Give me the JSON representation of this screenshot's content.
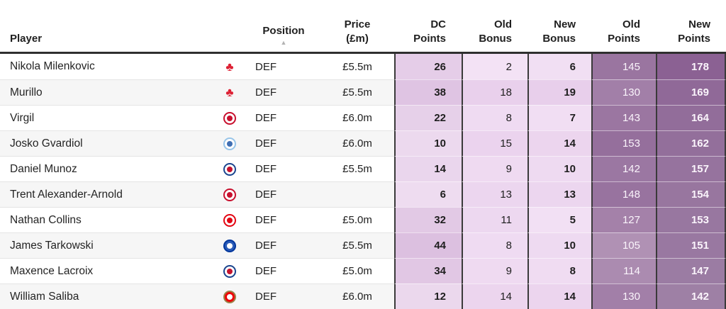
{
  "table": {
    "columns": {
      "player": {
        "label": "Player"
      },
      "position": {
        "label": "Position",
        "sort_indicator": "▲"
      },
      "price": {
        "line1": "Price",
        "line2": "(£m)"
      },
      "dc_points": {
        "line1": "DC",
        "line2": "Points"
      },
      "old_bonus": {
        "line1": "Old",
        "line2": "Bonus"
      },
      "new_bonus": {
        "line1": "New",
        "line2": "Bonus"
      },
      "old_points": {
        "line1": "Old",
        "line2": "Points"
      },
      "new_points": {
        "line1": "New",
        "line2": "Points"
      }
    },
    "rows": [
      {
        "player": "Nikola Milenkovic",
        "club": "nottingham-forest",
        "position": "DEF",
        "price": "£5.5m",
        "dc_points": 26,
        "old_bonus": 2,
        "new_bonus": 6,
        "old_points": 145,
        "new_points": 178
      },
      {
        "player": "Murillo",
        "club": "nottingham-forest",
        "position": "DEF",
        "price": "£5.5m",
        "dc_points": 38,
        "old_bonus": 18,
        "new_bonus": 19,
        "old_points": 130,
        "new_points": 169
      },
      {
        "player": "Virgil",
        "club": "liverpool",
        "position": "DEF",
        "price": "£6.0m",
        "dc_points": 22,
        "old_bonus": 8,
        "new_bonus": 7,
        "old_points": 143,
        "new_points": 164
      },
      {
        "player": "Josko Gvardiol",
        "club": "man-city",
        "position": "DEF",
        "price": "£6.0m",
        "dc_points": 10,
        "old_bonus": 15,
        "new_bonus": 14,
        "old_points": 153,
        "new_points": 162
      },
      {
        "player": "Daniel Munoz",
        "club": "crystal-palace",
        "position": "DEF",
        "price": "£5.5m",
        "dc_points": 14,
        "old_bonus": 9,
        "new_bonus": 10,
        "old_points": 142,
        "new_points": 157
      },
      {
        "player": "Trent Alexander-Arnold",
        "club": "liverpool",
        "position": "DEF",
        "price": "",
        "dc_points": 6,
        "old_bonus": 13,
        "new_bonus": 13,
        "old_points": 148,
        "new_points": 154
      },
      {
        "player": "Nathan Collins",
        "club": "brentford",
        "position": "DEF",
        "price": "£5.0m",
        "dc_points": 32,
        "old_bonus": 11,
        "new_bonus": 5,
        "old_points": 127,
        "new_points": 153
      },
      {
        "player": "James Tarkowski",
        "club": "everton",
        "position": "DEF",
        "price": "£5.5m",
        "dc_points": 44,
        "old_bonus": 8,
        "new_bonus": 10,
        "old_points": 105,
        "new_points": 151
      },
      {
        "player": "Maxence Lacroix",
        "club": "crystal-palace",
        "position": "DEF",
        "price": "£5.0m",
        "dc_points": 34,
        "old_bonus": 9,
        "new_bonus": 8,
        "old_points": 114,
        "new_points": 147
      },
      {
        "player": "William Saliba",
        "club": "arsenal",
        "position": "DEF",
        "price": "£6.0m",
        "dc_points": 12,
        "old_bonus": 14,
        "new_bonus": 14,
        "old_points": 130,
        "new_points": 142
      }
    ]
  },
  "badges": {
    "nottingham-forest": {
      "icon": "nottingham-forest-badge",
      "glyph": "♣",
      "color": "#dd2033"
    },
    "liverpool": {
      "icon": "liverpool-badge",
      "ring": "#c8102e",
      "bg": "#ffffff",
      "center": "#c8102e"
    },
    "man-city": {
      "icon": "man-city-badge",
      "ring": "#98c5e9",
      "bg": "#ffffff",
      "center": "#3f6fb3"
    },
    "crystal-palace": {
      "icon": "crystal-palace-badge",
      "ring": "#1b458f",
      "bg": "#ffffff",
      "center": "#c4122e"
    },
    "brentford": {
      "icon": "brentford-badge",
      "ring": "#e30613",
      "bg": "#ffffff",
      "center": "#e30613"
    },
    "everton": {
      "icon": "everton-badge",
      "ring": "#00369c",
      "bg": "#2a5bb8",
      "center": "#ffffff"
    },
    "arsenal": {
      "icon": "arsenal-badge",
      "ring": "#9c824a",
      "bg": "#ef0107",
      "center": "#ffffff"
    }
  },
  "heatmap": {
    "dc_points": {
      "min": 6,
      "max": 44,
      "from": "#eedcf0",
      "to": "#dcc0e0",
      "text": "dark",
      "bold": true
    },
    "old_bonus": {
      "min": 2,
      "max": 18,
      "from": "#f3e2f5",
      "to": "#e9d0ec",
      "text": "dark",
      "bold": false
    },
    "new_bonus": {
      "min": 5,
      "max": 19,
      "from": "#f2e0f4",
      "to": "#e8cfeb",
      "text": "dark",
      "bold": true
    },
    "old_points": {
      "min": 105,
      "max": 153,
      "from": "#b091b4",
      "to": "#956f9c",
      "text": "light",
      "bold": false
    },
    "new_points": {
      "min": 142,
      "max": 178,
      "from": "#9e80a5",
      "to": "#8b6193",
      "text": "light",
      "bold": true
    }
  },
  "colors": {
    "header_border": "#2f2f2f",
    "column_divider": "#3a3a3a",
    "row_stripe": "#f6f6f6"
  }
}
